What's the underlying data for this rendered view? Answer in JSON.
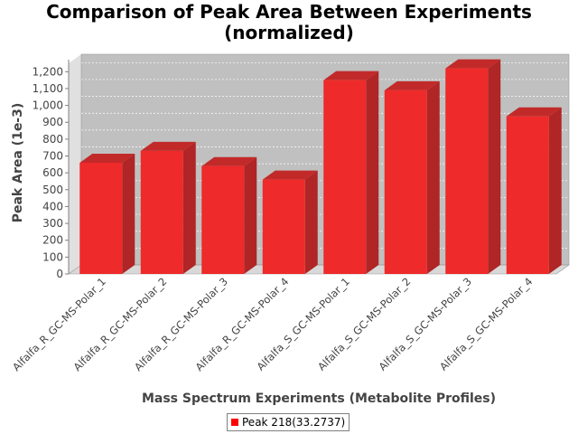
{
  "chart_data": {
    "type": "bar",
    "title": [
      "Comparison of Peak Area Between Experiments",
      "(normalized)"
    ],
    "xlabel": "Mass Spectrum Experiments (Metabolite Profiles)",
    "ylabel": "Peak Area (1e-3)",
    "ylim": [
      0,
      1250
    ],
    "yticks": [
      0,
      100,
      200,
      300,
      400,
      500,
      600,
      700,
      800,
      900,
      1000,
      1100,
      1200
    ],
    "ytick_labels": [
      "0",
      "100",
      "200",
      "300",
      "400",
      "500",
      "600",
      "700",
      "800",
      "900",
      "1,000",
      "1,100",
      "1,200"
    ],
    "categories": [
      "Alfalfa_R_GC-MS-Polar_1",
      "Alfalfa_R_GC-MS-Polar_2",
      "Alfalfa_R_GC-MS-Polar_3",
      "Alfalfa_R_GC-MS-Polar_4",
      "Alfalfa_S_GC-MS-Polar_1",
      "Alfalfa_S_GC-MS-Polar_2",
      "Alfalfa_S_GC-MS-Polar_3",
      "Alfalfa_S_GC-MS-Polar_4"
    ],
    "series": [
      {
        "name": "Peak 218(33.2737)",
        "values": [
          660,
          730,
          640,
          560,
          1150,
          1090,
          1220,
          935
        ]
      }
    ],
    "grid": true,
    "legend_position": "bottom",
    "colors": {
      "bar": "#ee2a2a",
      "bar_side": "#b02525",
      "bar_top": "#c22a2a",
      "plot_bg": "#c0c0c0",
      "legend_swatch": "#ff0000"
    }
  }
}
